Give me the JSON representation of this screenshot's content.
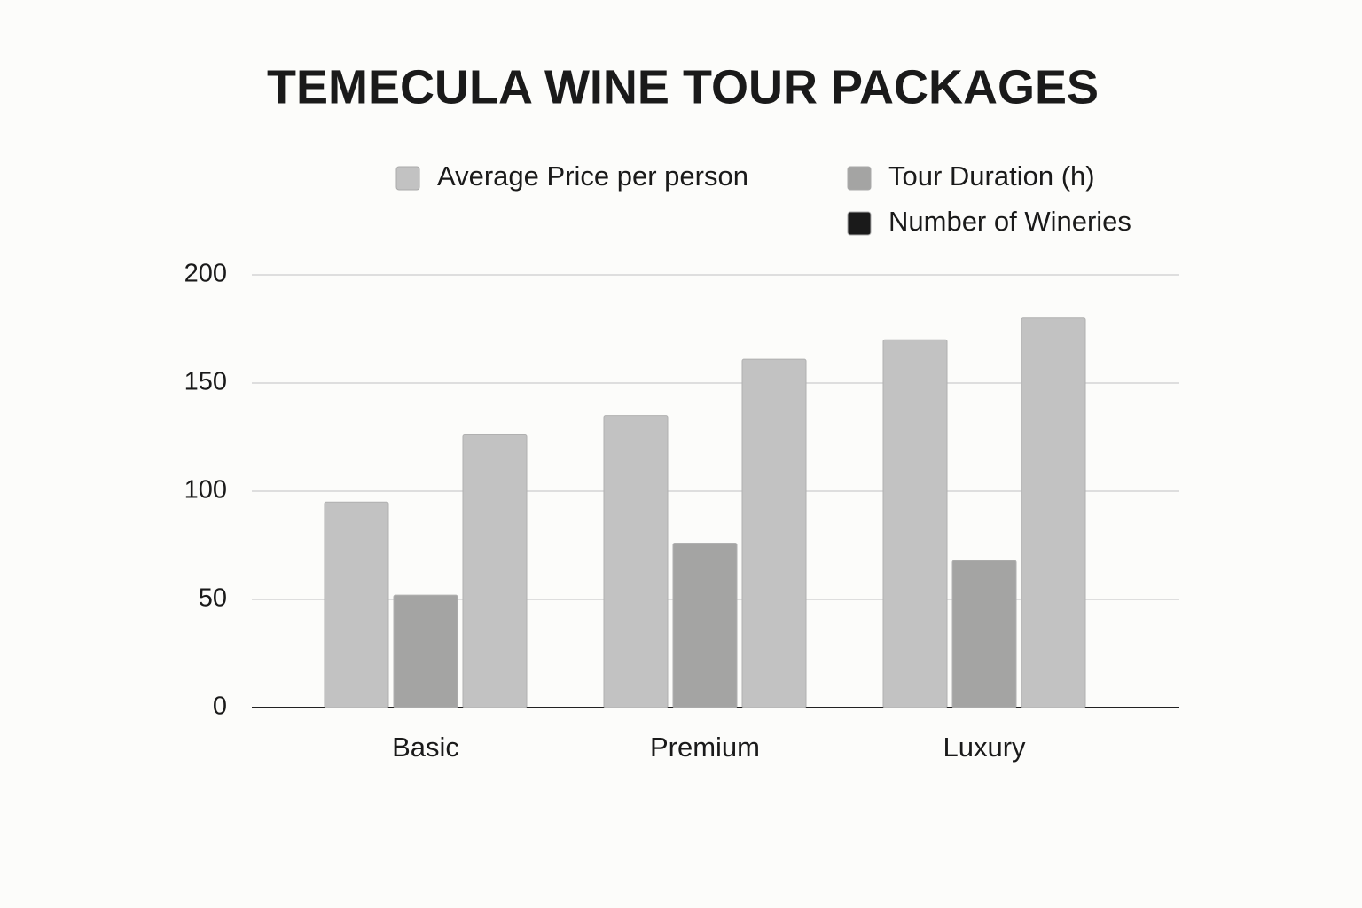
{
  "chart_data": {
    "type": "bar",
    "title": "TEMECULA WINE TOUR PACKAGES",
    "categories": [
      "Basic",
      "Premium",
      "Luxury"
    ],
    "series": [
      {
        "name": "Average Price per person",
        "color": "#c2c2c2",
        "values": [
          95,
          135,
          170
        ]
      },
      {
        "name": "Tour Duration (h)",
        "color": "#a4a4a3",
        "values": [
          52,
          76,
          68
        ]
      },
      {
        "name": "Number of Wineries",
        "color": "#c2c2c2",
        "values": [
          126,
          161,
          180
        ]
      }
    ],
    "ylim": [
      0,
      200
    ],
    "yticks": [
      0,
      50,
      100,
      150,
      200
    ],
    "grid": true,
    "legend": "top"
  }
}
